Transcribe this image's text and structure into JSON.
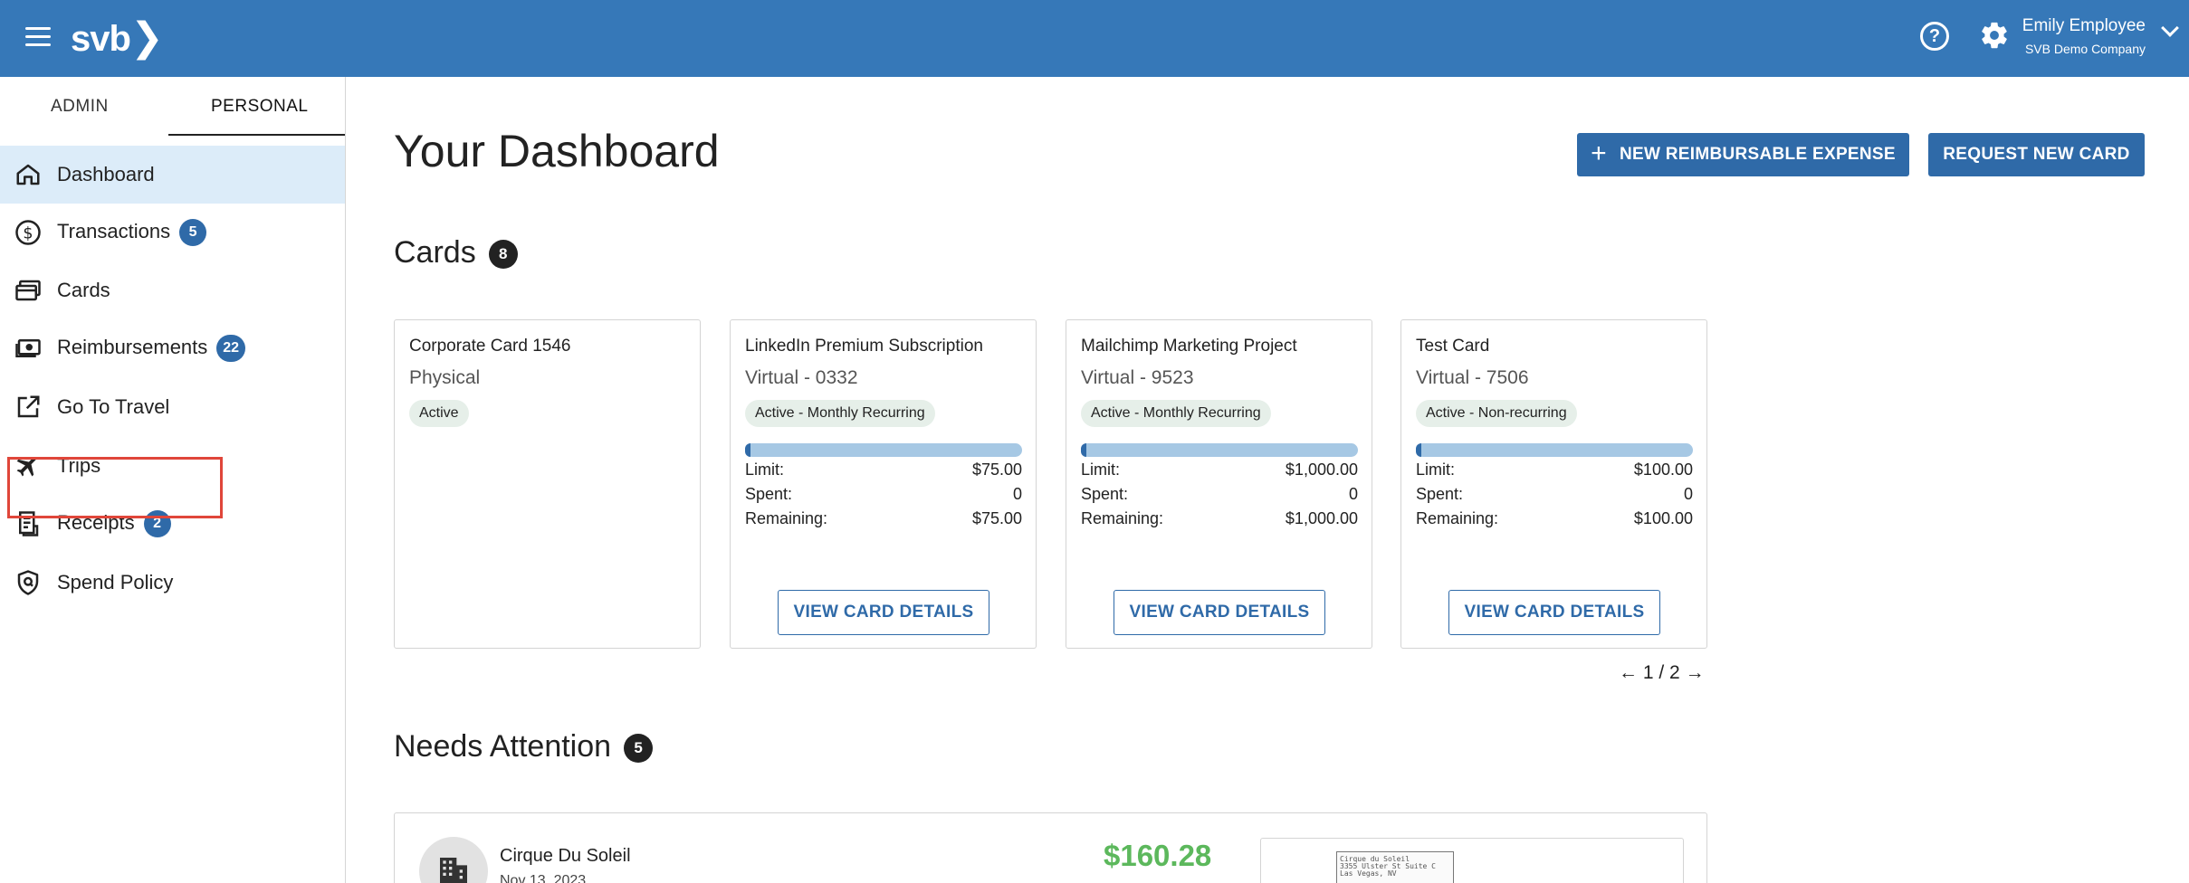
{
  "header": {
    "logo": "svb",
    "user_name": "Emily Employee",
    "company": "SVB Demo Company"
  },
  "sidebar": {
    "tabs": [
      {
        "label": "ADMIN"
      },
      {
        "label": "PERSONAL"
      }
    ],
    "items": [
      {
        "label": "Dashboard",
        "icon": "home-icon"
      },
      {
        "label": "Transactions",
        "icon": "dollar-circle-icon",
        "badge": "5"
      },
      {
        "label": "Cards",
        "icon": "cards-icon"
      },
      {
        "label": "Reimbursements",
        "icon": "cash-icon",
        "badge": "22"
      },
      {
        "label": "Go To Travel",
        "icon": "external-link-icon"
      },
      {
        "label": "Trips",
        "icon": "airplane-icon"
      },
      {
        "label": "Receipts",
        "icon": "receipt-icon",
        "badge": "2"
      },
      {
        "label": "Spend Policy",
        "icon": "shield-icon"
      }
    ]
  },
  "main": {
    "title": "Your Dashboard",
    "new_expense_label": "NEW REIMBURSABLE EXPENSE",
    "request_card_label": "REQUEST NEW CARD",
    "cards_section": {
      "title": "Cards",
      "count": "8"
    },
    "cards": [
      {
        "name": "Corporate Card 1546",
        "type": "Physical",
        "status": "Active"
      },
      {
        "name": "LinkedIn Premium Subscription",
        "type": "Virtual - 0332",
        "status": "Active - Monthly Recurring",
        "spent_fraction": 0,
        "limit_label": "Limit:",
        "limit": "$75.00",
        "spent_label": "Spent:",
        "spent": "0",
        "remaining_label": "Remaining:",
        "remaining": "$75.00",
        "button": "VIEW CARD DETAILS"
      },
      {
        "name": "Mailchimp Marketing Project",
        "type": "Virtual - 9523",
        "status": "Active - Monthly Recurring",
        "spent_fraction": 0,
        "limit_label": "Limit:",
        "limit": "$1,000.00",
        "spent_label": "Spent:",
        "spent": "0",
        "remaining_label": "Remaining:",
        "remaining": "$1,000.00",
        "button": "VIEW CARD DETAILS"
      },
      {
        "name": "Test Card",
        "type": "Virtual - 7506",
        "status": "Active - Non-recurring",
        "spent_fraction": 0,
        "limit_label": "Limit:",
        "limit": "$100.00",
        "spent_label": "Spent:",
        "spent": "0",
        "remaining_label": "Remaining:",
        "remaining": "$100.00",
        "button": "VIEW CARD DETAILS"
      }
    ],
    "pager": {
      "prev": "←",
      "current": "1 / 2",
      "next": "→"
    },
    "attention_section": {
      "title": "Needs Attention",
      "count": "5"
    },
    "attention_items": [
      {
        "merchant": "Cirque Du Soleil",
        "date": "Nov 13, 2023",
        "amount": "$160.28",
        "receipt_lines": [
          "Cirque du Soleil",
          "3355 Ulster St Suite C",
          "Las Vegas, NV"
        ]
      }
    ]
  },
  "colors": {
    "header": "#3678b8",
    "accent": "#2f6aa8",
    "active_nav": "#dcecf9",
    "amount": "#5cb85c",
    "highlight": "#e0463a"
  }
}
